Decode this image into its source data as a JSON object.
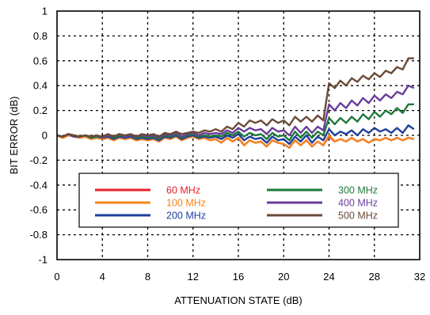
{
  "chart_data": {
    "type": "line",
    "title": "",
    "xlabel": "ATTENUATION STATE (dB)",
    "ylabel": "BIT ERROR (dB)",
    "xlim": [
      0,
      32
    ],
    "ylim": [
      -1,
      1
    ],
    "xticks": [
      "0",
      "4",
      "8",
      "12",
      "16",
      "20",
      "24",
      "28",
      "32"
    ],
    "yticks": [
      "1",
      "0.8",
      "0.6",
      "0.4",
      "0.2",
      "0",
      "-0.2",
      "-0.4",
      "-0.6",
      "-0.8",
      "-1"
    ],
    "grid": true,
    "legend_position": "lower-center",
    "x": [
      0,
      0.5,
      1,
      1.5,
      2,
      2.5,
      3,
      3.5,
      4,
      4.5,
      5,
      5.5,
      6,
      6.5,
      7,
      7.5,
      8,
      8.5,
      9,
      9.5,
      10,
      10.5,
      11,
      11.5,
      12,
      12.5,
      13,
      13.5,
      14,
      14.5,
      15,
      15.5,
      16,
      16.5,
      17,
      17.5,
      18,
      18.5,
      19,
      19.5,
      20,
      20.5,
      21,
      21.5,
      22,
      22.5,
      23,
      23.5,
      24,
      24.5,
      25,
      25.5,
      26,
      26.5,
      27,
      27.5,
      28,
      28.5,
      29,
      29.5,
      30,
      30.5,
      31,
      31.5
    ],
    "series": [
      {
        "name": "60 MHz",
        "color": "#e8202a",
        "values": [
          0,
          -0.02,
          0,
          -0.01,
          -0.02,
          -0.01,
          -0.03,
          -0.02,
          -0.03,
          -0.02,
          -0.04,
          -0.02,
          -0.03,
          -0.02,
          -0.04,
          -0.03,
          -0.04,
          -0.03,
          -0.05,
          -0.02,
          -0.03,
          -0.01,
          -0.04,
          -0.02,
          -0.01,
          -0.03,
          -0.02,
          -0.04,
          -0.03,
          -0.06,
          -0.02,
          -0.05,
          -0.02,
          -0.08,
          -0.04,
          -0.06,
          -0.05,
          -0.09,
          -0.04,
          -0.06,
          -0.07,
          -0.1,
          -0.04,
          -0.08,
          -0.04,
          -0.09,
          -0.05,
          -0.08,
          -0.01,
          -0.05,
          -0.03,
          -0.05,
          -0.02,
          -0.05,
          -0.03,
          -0.06,
          -0.03,
          -0.04,
          -0.02,
          -0.04,
          -0.02,
          -0.04,
          -0.02,
          -0.03
        ]
      },
      {
        "name": "100 MHz",
        "color": "#f5841f",
        "values": [
          0,
          -0.02,
          0,
          -0.01,
          -0.02,
          -0.01,
          -0.03,
          -0.02,
          -0.03,
          -0.02,
          -0.04,
          -0.02,
          -0.03,
          -0.02,
          -0.04,
          -0.03,
          -0.04,
          -0.03,
          -0.05,
          -0.02,
          -0.03,
          -0.01,
          -0.04,
          -0.02,
          -0.01,
          -0.03,
          -0.02,
          -0.04,
          -0.03,
          -0.06,
          -0.02,
          -0.05,
          -0.02,
          -0.08,
          -0.04,
          -0.06,
          -0.05,
          -0.09,
          -0.04,
          -0.06,
          -0.07,
          -0.1,
          -0.04,
          -0.08,
          -0.04,
          -0.09,
          -0.05,
          -0.08,
          0,
          -0.05,
          -0.03,
          -0.05,
          -0.02,
          -0.05,
          -0.03,
          -0.06,
          -0.03,
          -0.04,
          -0.02,
          -0.04,
          -0.02,
          -0.04,
          -0.02,
          -0.03
        ]
      },
      {
        "name": "200 MHz",
        "color": "#1f3f99",
        "values": [
          0,
          -0.01,
          0.01,
          -0.01,
          -0.01,
          0,
          -0.02,
          -0.01,
          -0.02,
          -0.01,
          -0.03,
          -0.01,
          -0.02,
          -0.01,
          -0.03,
          -0.02,
          -0.03,
          -0.02,
          -0.04,
          -0.01,
          -0.02,
          0,
          -0.03,
          -0.01,
          0,
          -0.02,
          -0.01,
          -0.02,
          -0.01,
          -0.03,
          0,
          -0.02,
          0.01,
          -0.04,
          -0.01,
          -0.03,
          -0.02,
          -0.06,
          -0.01,
          -0.04,
          -0.03,
          -0.07,
          -0.01,
          -0.05,
          0,
          -0.06,
          -0.01,
          -0.04,
          0.05,
          0,
          0.03,
          0.01,
          0.04,
          0,
          0.05,
          0.02,
          0.06,
          0.03,
          0.05,
          0.02,
          0.06,
          0.02,
          0.08,
          0.05
        ]
      },
      {
        "name": "300 MHz",
        "color": "#1d7a3a",
        "values": [
          0,
          -0.01,
          0.01,
          0,
          -0.01,
          0,
          -0.02,
          -0.01,
          -0.02,
          0,
          -0.02,
          0,
          -0.01,
          0,
          -0.02,
          -0.01,
          -0.02,
          -0.01,
          -0.03,
          0,
          -0.01,
          0.01,
          -0.02,
          0,
          0.01,
          -0.01,
          0,
          -0.01,
          0,
          -0.01,
          0.02,
          0,
          0.03,
          -0.01,
          0.02,
          0,
          0.01,
          -0.03,
          0.02,
          -0.01,
          0,
          -0.04,
          0.03,
          -0.02,
          0.03,
          -0.02,
          0.03,
          0,
          0.14,
          0.09,
          0.14,
          0.1,
          0.15,
          0.11,
          0.17,
          0.13,
          0.19,
          0.15,
          0.2,
          0.17,
          0.22,
          0.18,
          0.25,
          0.25
        ]
      },
      {
        "name": "400 MHz",
        "color": "#6a3d9a",
        "values": [
          0,
          -0.01,
          0.01,
          0,
          -0.01,
          0,
          -0.01,
          0,
          -0.02,
          0,
          -0.01,
          0.01,
          -0.01,
          0,
          -0.01,
          0,
          -0.01,
          0,
          -0.02,
          0.01,
          0,
          0.02,
          -0.01,
          0.01,
          0.02,
          0,
          0.02,
          0.01,
          0.02,
          0.01,
          0.04,
          0.02,
          0.06,
          0.03,
          0.06,
          0.04,
          0.05,
          0.01,
          0.06,
          0.03,
          0.04,
          0,
          0.07,
          0.02,
          0.07,
          0.02,
          0.07,
          0.04,
          0.25,
          0.2,
          0.26,
          0.22,
          0.28,
          0.24,
          0.3,
          0.26,
          0.32,
          0.28,
          0.33,
          0.3,
          0.35,
          0.33,
          0.4,
          0.38
        ]
      },
      {
        "name": "500 MHz",
        "color": "#6b4a36",
        "values": [
          0,
          -0.01,
          0.01,
          0,
          -0.01,
          0,
          -0.01,
          0,
          -0.01,
          0.01,
          -0.01,
          0.01,
          0,
          0.01,
          -0.01,
          0.01,
          0,
          0.01,
          -0.01,
          0.02,
          0.01,
          0.03,
          0.01,
          0.02,
          0.03,
          0.02,
          0.04,
          0.03,
          0.05,
          0.03,
          0.07,
          0.05,
          0.1,
          0.07,
          0.12,
          0.1,
          0.12,
          0.08,
          0.13,
          0.1,
          0.12,
          0.08,
          0.15,
          0.11,
          0.15,
          0.11,
          0.16,
          0.12,
          0.42,
          0.38,
          0.44,
          0.4,
          0.46,
          0.43,
          0.48,
          0.45,
          0.5,
          0.47,
          0.52,
          0.5,
          0.55,
          0.53,
          0.62,
          0.62
        ]
      }
    ]
  }
}
